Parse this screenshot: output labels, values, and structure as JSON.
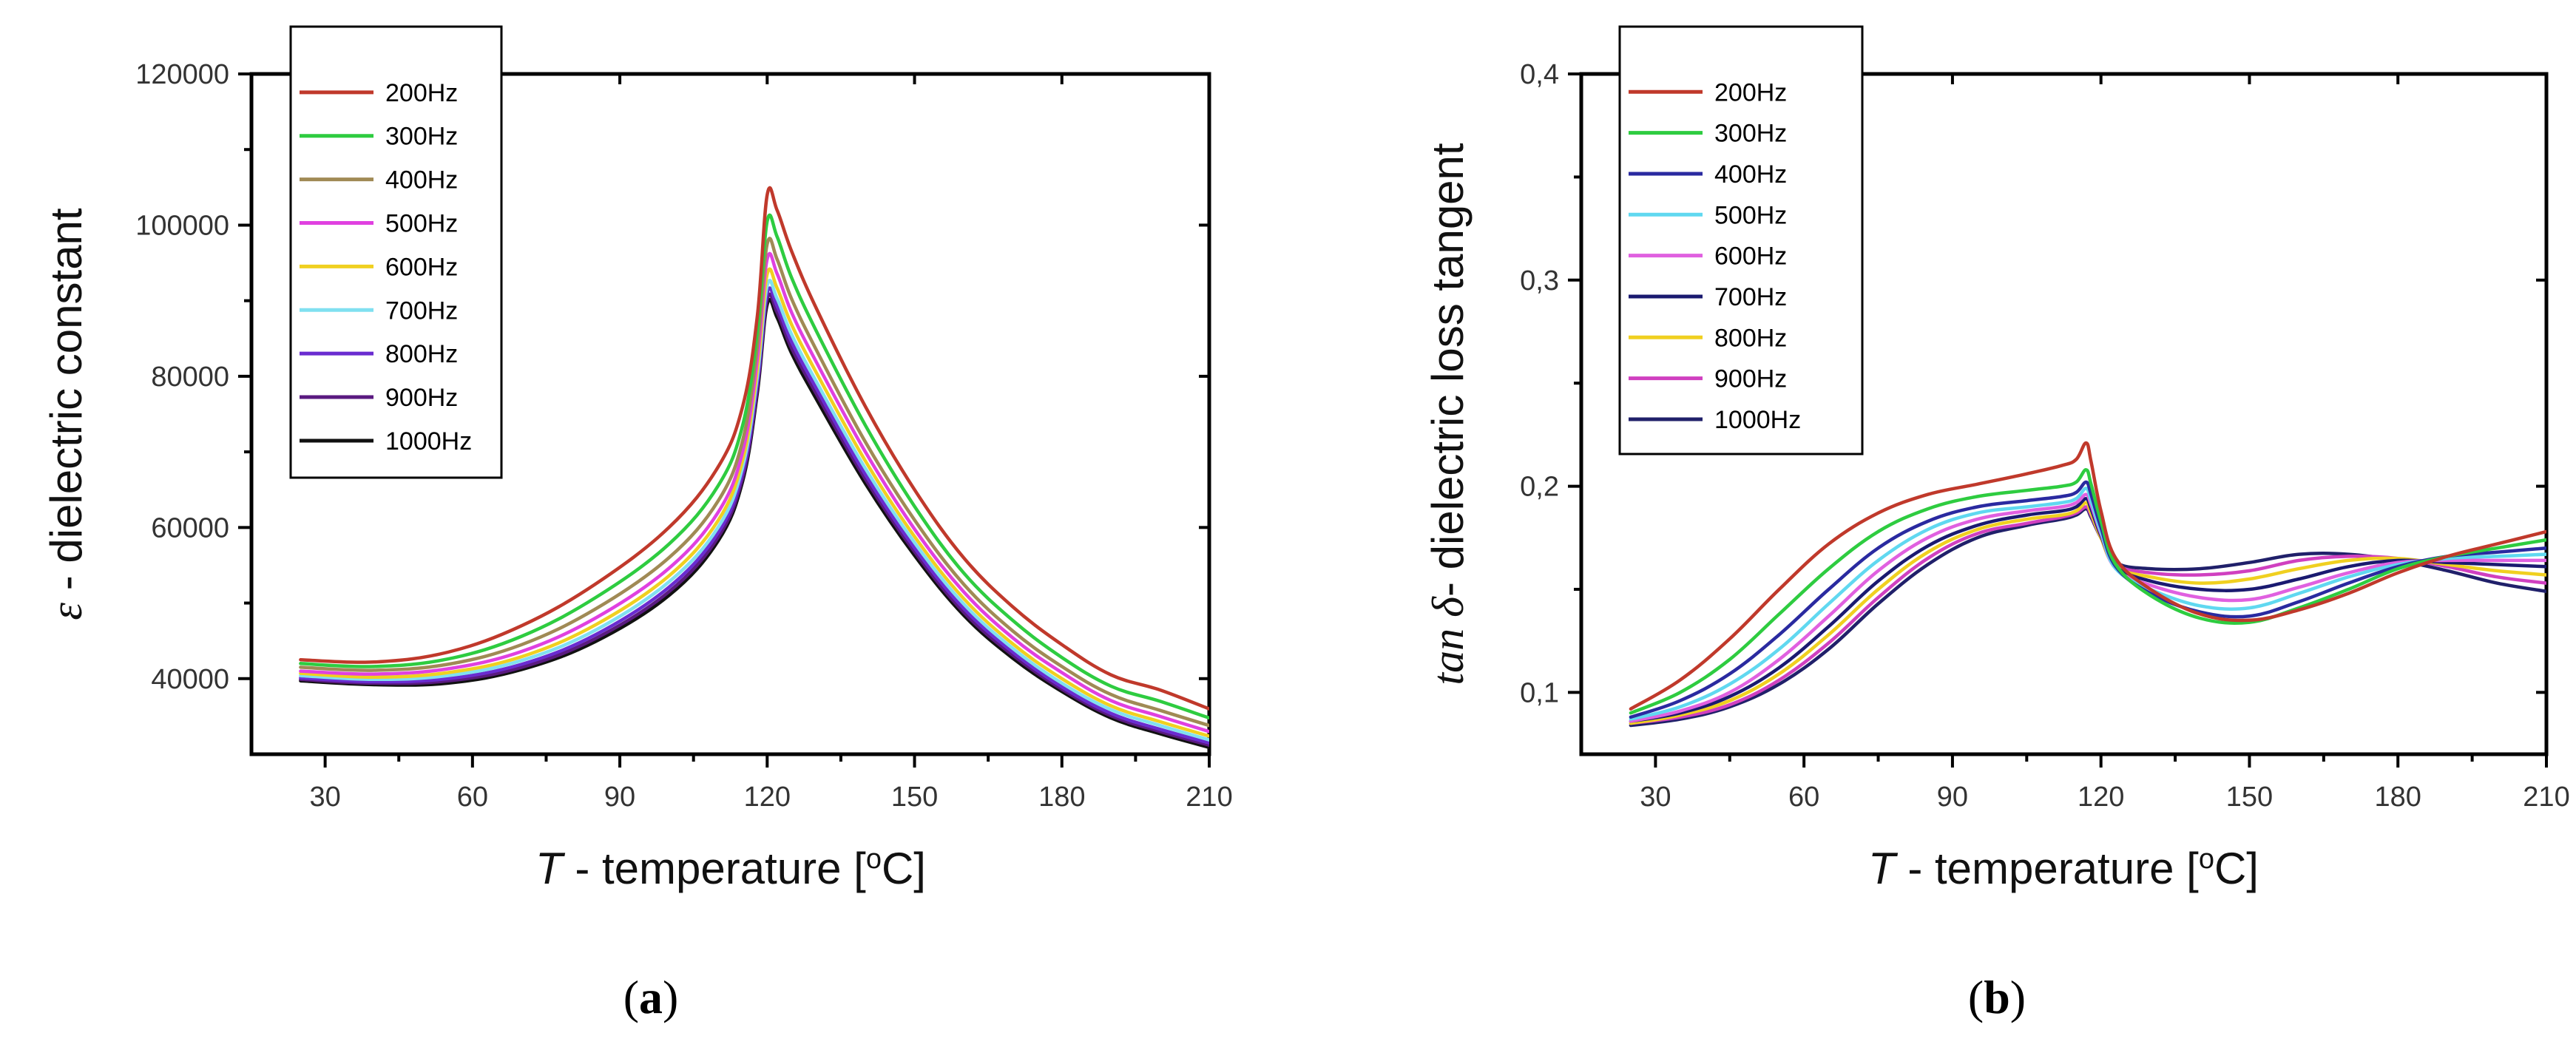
{
  "chart_data": [
    {
      "type": "line",
      "panel_label": "a",
      "xlabel": {
        "symbol": "T",
        "text": " - temperature [",
        "sup": "o",
        "end": "C]"
      },
      "ylabel": {
        "symbol": "ε",
        "text": " - dielectric constant"
      },
      "xlim": [
        15,
        210
      ],
      "ylim": [
        30000,
        120000
      ],
      "xticks": [
        30,
        60,
        90,
        120,
        150,
        180,
        210
      ],
      "yticks": [
        40000,
        60000,
        80000,
        100000,
        120000
      ],
      "ytick_labels": [
        "40000",
        "60000",
        "80000",
        "100000",
        "120000"
      ],
      "legend_position": "top-left",
      "x": [
        25,
        40,
        55,
        70,
        85,
        100,
        110,
        115,
        118,
        120,
        122,
        125,
        130,
        140,
        150,
        160,
        170,
        180,
        190,
        200,
        210
      ],
      "series": [
        {
          "name": "200Hz",
          "color": "#c0392b",
          "values": [
            42500,
            42200,
            43500,
            47000,
            52500,
            60000,
            68000,
            76000,
            88000,
            104000,
            102000,
            96500,
            89000,
            76000,
            65000,
            56000,
            49500,
            44500,
            40500,
            38500,
            36000
          ]
        },
        {
          "name": "300Hz",
          "color": "#2ecc40",
          "values": [
            42000,
            41600,
            42600,
            45600,
            50700,
            57800,
            65500,
            73500,
            86000,
            100500,
            98500,
            93000,
            86000,
            73500,
            62800,
            54000,
            47700,
            42800,
            39000,
            37000,
            34800
          ]
        },
        {
          "name": "400Hz",
          "color": "#a08a55",
          "values": [
            41500,
            41100,
            41900,
            44500,
            49200,
            56000,
            63500,
            71500,
            84000,
            97500,
            95500,
            90200,
            83500,
            71300,
            61000,
            52500,
            46300,
            41600,
            37900,
            35800,
            33800
          ]
        },
        {
          "name": "500Hz",
          "color": "#e040e0",
          "values": [
            41000,
            40600,
            41300,
            43600,
            48000,
            54600,
            62000,
            70000,
            82300,
            95500,
            93600,
            88400,
            81900,
            70000,
            59800,
            51500,
            45400,
            40800,
            37100,
            35000,
            33000
          ]
        },
        {
          "name": "600Hz",
          "color": "#f0d020",
          "values": [
            40700,
            40200,
            40800,
            42900,
            47100,
            53600,
            60900,
            68900,
            81000,
            93500,
            91700,
            86800,
            80500,
            68800,
            58800,
            50600,
            44600,
            40000,
            36400,
            34300,
            32400
          ]
        },
        {
          "name": "700Hz",
          "color": "#80e0f0",
          "values": [
            40400,
            39900,
            40400,
            42400,
            46400,
            52800,
            60000,
            68000,
            80000,
            92000,
            90300,
            85500,
            79300,
            67800,
            58000,
            49900,
            44000,
            39400,
            35900,
            33800,
            31900
          ]
        },
        {
          "name": "800Hz",
          "color": "#6a2cd0",
          "values": [
            40100,
            39600,
            40000,
            41900,
            45800,
            52100,
            59300,
            67200,
            79100,
            91000,
            89300,
            84500,
            78400,
            67000,
            57300,
            49300,
            43500,
            38900,
            35400,
            33300,
            31500
          ]
        },
        {
          "name": "900Hz",
          "color": "#5a1a80",
          "values": [
            39900,
            39400,
            39700,
            41500,
            45300,
            51500,
            58700,
            66600,
            78400,
            90200,
            88500,
            83700,
            77700,
            66400,
            56800,
            48800,
            43100,
            38600,
            35100,
            33000,
            31200
          ]
        },
        {
          "name": "1000Hz",
          "color": "#111111",
          "values": [
            39700,
            39200,
            39400,
            41200,
            44900,
            51000,
            58200,
            66100,
            77800,
            89500,
            87800,
            83000,
            77000,
            65800,
            56300,
            48400,
            42700,
            38300,
            34800,
            32700,
            30900
          ]
        }
      ]
    },
    {
      "type": "line",
      "panel_label": "b",
      "xlabel": {
        "symbol": "T",
        "text": " - temperature [",
        "sup": "o",
        "end": "C]"
      },
      "ylabel": {
        "symbol": "tan δ",
        "text": "- dielectric loss tangent"
      },
      "xlim": [
        15,
        210
      ],
      "ylim": [
        0.07,
        0.4
      ],
      "xticks": [
        30,
        60,
        90,
        120,
        150,
        180,
        210
      ],
      "yticks": [
        0.1,
        0.2,
        0.3,
        0.4
      ],
      "ytick_labels": [
        "0,1",
        "0,2",
        "0,3",
        "0,4"
      ],
      "legend_position": "top-left",
      "x": [
        25,
        35,
        45,
        55,
        65,
        75,
        85,
        95,
        105,
        112,
        115,
        117,
        118,
        120,
        123,
        130,
        140,
        150,
        160,
        170,
        180,
        190,
        200,
        210
      ],
      "series": [
        {
          "name": "200Hz",
          "color": "#c0392b",
          "values": [
            0.092,
            0.106,
            0.126,
            0.15,
            0.172,
            0.187,
            0.196,
            0.201,
            0.206,
            0.21,
            0.213,
            0.221,
            0.212,
            0.188,
            0.165,
            0.15,
            0.138,
            0.135,
            0.14,
            0.148,
            0.158,
            0.166,
            0.172,
            0.178
          ]
        },
        {
          "name": "300Hz",
          "color": "#2ecc40",
          "values": [
            0.09,
            0.1,
            0.116,
            0.138,
            0.16,
            0.178,
            0.189,
            0.195,
            0.198,
            0.2,
            0.202,
            0.208,
            0.201,
            0.183,
            0.162,
            0.147,
            0.136,
            0.134,
            0.141,
            0.15,
            0.16,
            0.166,
            0.17,
            0.174
          ]
        },
        {
          "name": "400Hz",
          "color": "#2a2aa0",
          "values": [
            0.088,
            0.096,
            0.109,
            0.128,
            0.15,
            0.17,
            0.183,
            0.19,
            0.193,
            0.195,
            0.197,
            0.202,
            0.196,
            0.18,
            0.161,
            0.148,
            0.139,
            0.137,
            0.144,
            0.153,
            0.161,
            0.166,
            0.168,
            0.17
          ]
        },
        {
          "name": "500Hz",
          "color": "#60d8f0",
          "values": [
            0.087,
            0.093,
            0.104,
            0.121,
            0.143,
            0.164,
            0.179,
            0.187,
            0.19,
            0.192,
            0.194,
            0.199,
            0.193,
            0.178,
            0.16,
            0.15,
            0.142,
            0.141,
            0.148,
            0.156,
            0.162,
            0.165,
            0.166,
            0.167
          ]
        },
        {
          "name": "600Hz",
          "color": "#e060e0",
          "values": [
            0.086,
            0.091,
            0.1,
            0.116,
            0.137,
            0.159,
            0.175,
            0.184,
            0.188,
            0.19,
            0.192,
            0.196,
            0.191,
            0.177,
            0.16,
            0.152,
            0.146,
            0.145,
            0.151,
            0.158,
            0.163,
            0.164,
            0.164,
            0.164
          ]
        },
        {
          "name": "700Hz",
          "color": "#1a1a70",
          "values": [
            0.086,
            0.09,
            0.098,
            0.112,
            0.132,
            0.154,
            0.171,
            0.181,
            0.186,
            0.188,
            0.19,
            0.194,
            0.189,
            0.176,
            0.161,
            0.154,
            0.15,
            0.15,
            0.155,
            0.161,
            0.164,
            0.163,
            0.162,
            0.161
          ]
        },
        {
          "name": "800Hz",
          "color": "#f0d020",
          "values": [
            0.085,
            0.089,
            0.096,
            0.109,
            0.128,
            0.15,
            0.168,
            0.179,
            0.184,
            0.186,
            0.188,
            0.192,
            0.187,
            0.175,
            0.161,
            0.156,
            0.153,
            0.155,
            0.16,
            0.164,
            0.165,
            0.162,
            0.159,
            0.157
          ]
        },
        {
          "name": "900Hz",
          "color": "#d040c0",
          "values": [
            0.085,
            0.088,
            0.094,
            0.106,
            0.124,
            0.146,
            0.165,
            0.177,
            0.182,
            0.185,
            0.187,
            0.19,
            0.186,
            0.175,
            0.162,
            0.158,
            0.157,
            0.159,
            0.164,
            0.166,
            0.165,
            0.161,
            0.156,
            0.153
          ]
        },
        {
          "name": "1000Hz",
          "color": "#20206a",
          "values": [
            0.084,
            0.087,
            0.093,
            0.104,
            0.121,
            0.143,
            0.162,
            0.175,
            0.181,
            0.184,
            0.186,
            0.189,
            0.185,
            0.175,
            0.163,
            0.16,
            0.16,
            0.163,
            0.167,
            0.167,
            0.164,
            0.159,
            0.153,
            0.149
          ]
        }
      ]
    }
  ]
}
